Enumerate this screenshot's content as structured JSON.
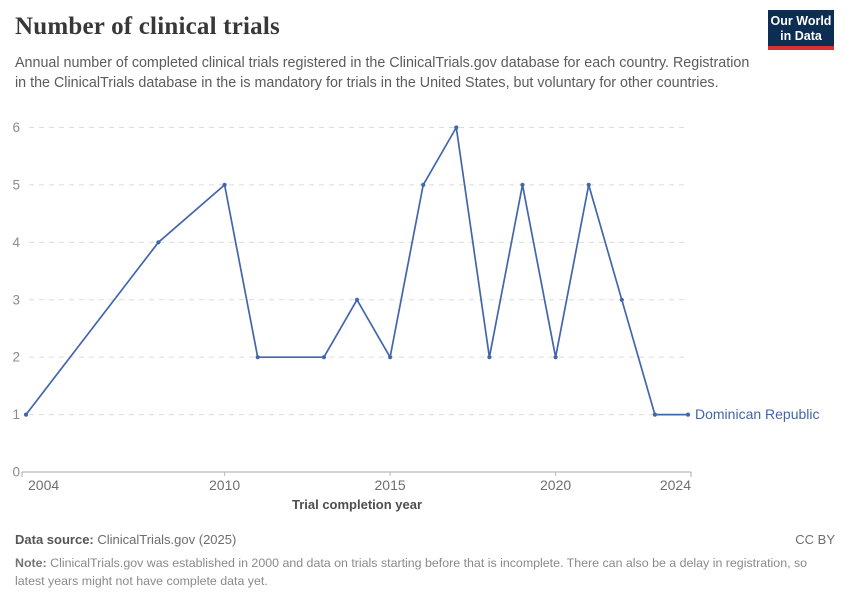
{
  "header": {
    "title": "Number of clinical trials",
    "subtitle": "Annual number of completed clinical trials registered in the ClinicalTrials.gov database for each country. Registration in the ClinicalTrials database in the is mandatory for trials in the United States, but voluntary for other countries.",
    "logo": {
      "line1": "Our World",
      "line2": "in Data",
      "bg": "#0d2d52",
      "bar": "#d7352c"
    }
  },
  "chart_data": {
    "type": "line",
    "title": "Number of clinical trials",
    "xlabel": "Trial completion year",
    "ylabel": "",
    "xlim": [
      2004,
      2024
    ],
    "ylim": [
      0,
      6
    ],
    "x_ticks": [
      2004,
      2010,
      2015,
      2020,
      2024
    ],
    "y_ticks": [
      0,
      1,
      2,
      3,
      4,
      5,
      6
    ],
    "grid": "horizontal-dashed",
    "legend_position": "end-of-line-label",
    "series": [
      {
        "name": "Dominican Republic",
        "color": "#4266ab",
        "points": [
          [
            2004,
            1
          ],
          [
            2008,
            4
          ],
          [
            2010,
            5
          ],
          [
            2011,
            2
          ],
          [
            2013,
            2
          ],
          [
            2014,
            3
          ],
          [
            2015,
            2
          ],
          [
            2016,
            5
          ],
          [
            2017,
            6
          ],
          [
            2018,
            2
          ],
          [
            2019,
            5
          ],
          [
            2020,
            2
          ],
          [
            2021,
            5
          ],
          [
            2022,
            3
          ],
          [
            2023,
            1
          ],
          [
            2024,
            1
          ]
        ]
      }
    ],
    "colors": {
      "grid": "#dcdcdc",
      "axis": "#a9a9a9",
      "x_tick_text": "#6f6f6f",
      "y_tick_text": "#8c8c8c",
      "axis_title_text": "#4e4e4e"
    }
  },
  "footer": {
    "source_label": "Data source:",
    "source_value": " ClinicalTrials.gov (2025)",
    "license": "CC BY",
    "note_label": "Note:",
    "note_value": " ClinicalTrials.gov was established in 2000 and data on trials starting before that is incomplete. There can also be a delay in registration, so latest years might not have complete data yet."
  }
}
